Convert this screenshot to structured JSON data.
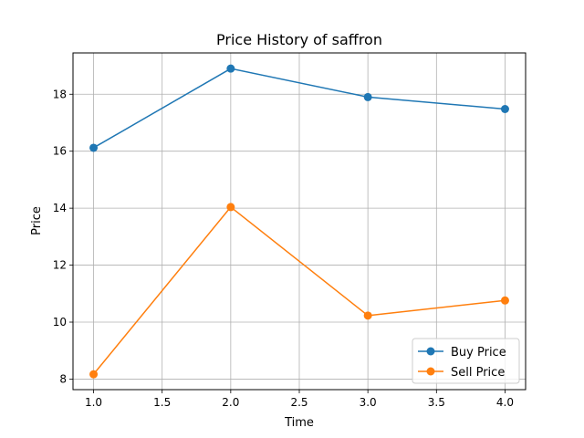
{
  "chart_data": {
    "type": "line",
    "title": "Price History of saffron",
    "xlabel": "Time",
    "ylabel": "Price",
    "x": [
      1,
      2,
      3,
      4
    ],
    "series": [
      {
        "name": "Buy Price",
        "values": [
          16.12,
          18.9,
          17.9,
          17.48
        ],
        "color": "#1f77b4",
        "marker": "circle"
      },
      {
        "name": "Sell Price",
        "values": [
          8.17,
          14.04,
          10.23,
          10.76
        ],
        "color": "#ff7f0e",
        "marker": "circle"
      }
    ],
    "xlim": [
      0.85,
      4.15
    ],
    "ylim": [
      7.63,
      19.45
    ],
    "xticks": [
      1.0,
      1.5,
      2.0,
      2.5,
      3.0,
      3.5,
      4.0
    ],
    "xtick_labels": [
      "1.0",
      "1.5",
      "2.0",
      "2.5",
      "3.0",
      "3.5",
      "4.0"
    ],
    "yticks": [
      8,
      10,
      12,
      14,
      16,
      18
    ],
    "ytick_labels": [
      "8",
      "10",
      "12",
      "14",
      "16",
      "18"
    ],
    "grid": true,
    "legend_position": "lower-right"
  }
}
